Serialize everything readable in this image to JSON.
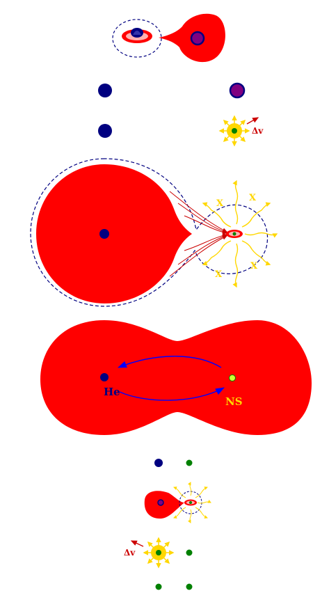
{
  "labels": {
    "delta_v_top": "Δv",
    "delta_v_bottom": "Δv",
    "xray_1": "X",
    "xray_2": "X",
    "xray_3": "X",
    "xray_4": "X",
    "he": "He",
    "ns": "NS"
  },
  "colors": {
    "envelope": "#ff0000",
    "star_blue": "#000080",
    "star_purple": "#800080",
    "neutron_star": "#008000",
    "supernova_yellow": "#ffd700",
    "roche_lobe_dashed": "#000080",
    "mass_transfer_arrow": "#cc0000",
    "orbit_arrow": "#0000ff",
    "he_label": "#000080",
    "ns_label": "#ffd700",
    "ns_core": "#ccff33"
  }
}
